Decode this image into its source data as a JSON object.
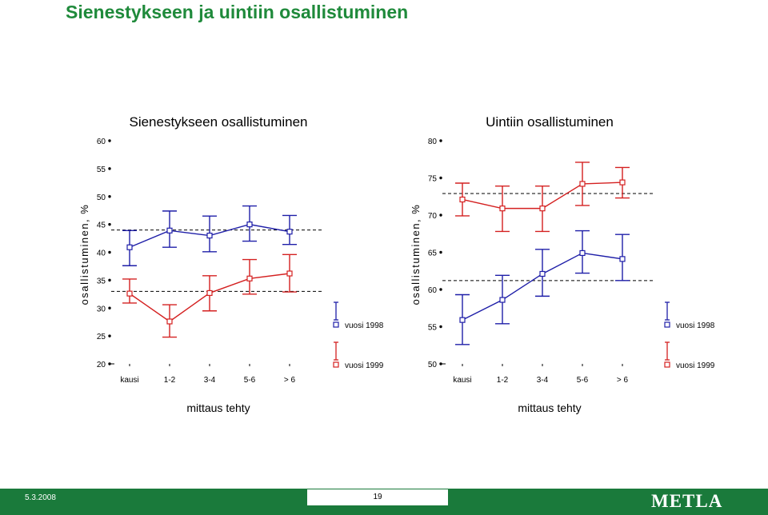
{
  "page_title": "Sienestykseen ja uintiin osallistuminen",
  "footer": {
    "date": "5.3.2008",
    "page_number": "19",
    "logo": "METLA"
  },
  "colors": {
    "title": "#1f8a3b",
    "series_1998": "#1e1ea8",
    "series_1999": "#d42020",
    "footer_bg": "#1a7a3b"
  },
  "chart_data": [
    {
      "type": "line",
      "title": "Sienestykseen osallistuminen",
      "xlabel": "mittaus tehty",
      "ylabel": "osallistuminen, %",
      "categories": [
        "kausi",
        "1-2",
        "3-4",
        "5-6",
        "> 6"
      ],
      "ylim": [
        20,
        60
      ],
      "yticks": [
        20,
        25,
        30,
        35,
        40,
        45,
        50,
        55,
        60
      ],
      "grid": false,
      "legend": "right",
      "series": [
        {
          "name": "vuosi 1998",
          "values": [
            40.9,
            43.9,
            43.0,
            45.0,
            43.7
          ],
          "err_low": [
            37.6,
            40.9,
            40.1,
            42.0,
            41.4
          ],
          "err_high": [
            43.9,
            47.4,
            46.5,
            48.3,
            46.6
          ],
          "ref_line": 44.0
        },
        {
          "name": "vuosi 1999",
          "values": [
            32.6,
            27.6,
            32.7,
            35.3,
            36.2
          ],
          "err_low": [
            30.9,
            24.8,
            29.5,
            32.5,
            32.9
          ],
          "err_high": [
            35.2,
            30.6,
            35.8,
            38.7,
            39.6
          ],
          "ref_line": 33.0
        }
      ]
    },
    {
      "type": "line",
      "title": "Uintiin osallistuminen",
      "xlabel": "mittaus tehty",
      "ylabel": "osallistuminen, %",
      "categories": [
        "kausi",
        "1-2",
        "3-4",
        "5-6",
        "> 6"
      ],
      "ylim": [
        50,
        80
      ],
      "yticks": [
        50,
        55,
        60,
        65,
        70,
        75,
        80
      ],
      "grid": false,
      "legend": "right",
      "series": [
        {
          "name": "vuosi 1998",
          "values": [
            55.9,
            58.6,
            62.1,
            64.9,
            64.1
          ],
          "err_low": [
            52.6,
            55.4,
            59.1,
            62.2,
            61.2
          ],
          "err_high": [
            59.3,
            61.9,
            65.4,
            67.9,
            67.4
          ],
          "ref_line": 61.2
        },
        {
          "name": "vuosi 1999",
          "values": [
            72.1,
            70.9,
            70.9,
            74.2,
            74.4
          ],
          "err_low": [
            69.9,
            67.8,
            67.8,
            71.3,
            72.3
          ],
          "err_high": [
            74.3,
            73.9,
            73.9,
            77.1,
            76.4
          ],
          "ref_line": 72.9
        }
      ]
    }
  ]
}
